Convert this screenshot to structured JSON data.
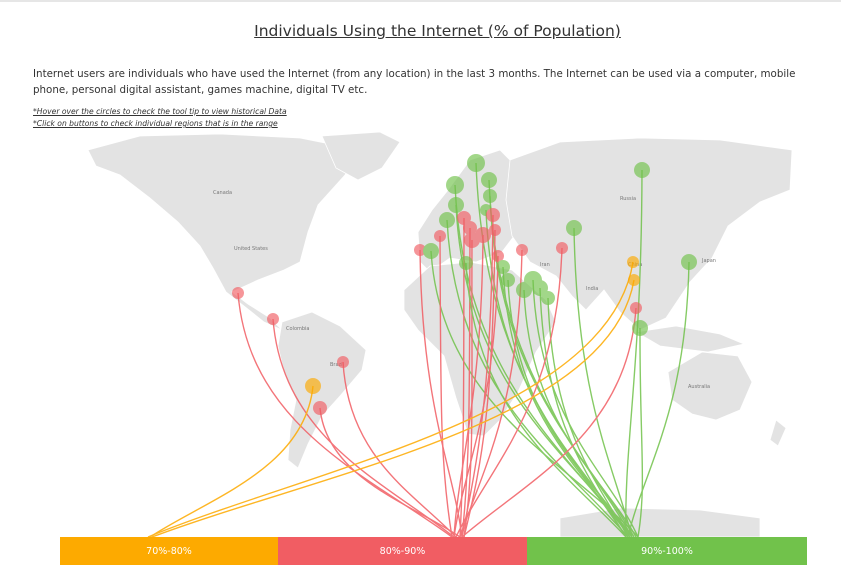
{
  "header": {
    "title": "Individuals Using the Internet (% of Population)",
    "description": "Internet users are individuals who have used the Internet (from any location) in the last 3 months. The Internet can be used via a computer, mobile phone, personal digital assistant, games machine, digital TV etc.",
    "note_hover": "*Hover over the circles to check the tool tip to view historical Data",
    "note_click": "*Click on buttons to check individual regions that is in the range"
  },
  "map_labels": {
    "canada": "Canada",
    "united_states": "United States",
    "colombia": "Colombia",
    "brazil": "Brazil",
    "australia": "Australia",
    "china": "China",
    "japan": "Japan",
    "india": "India",
    "iran": "Iran",
    "russia": "Russia"
  },
  "colors": {
    "range_70_80": "#fdaa00",
    "range_80_90": "#f15d63",
    "range_90_100": "#71c24b",
    "land": "#e3e3e3"
  },
  "legend": {
    "buttons": [
      {
        "label": "70%-80%",
        "range": "70-80"
      },
      {
        "label": "80%-90%",
        "range": "80-90"
      },
      {
        "label": "90%-100%",
        "range": "90-100"
      }
    ]
  }
}
